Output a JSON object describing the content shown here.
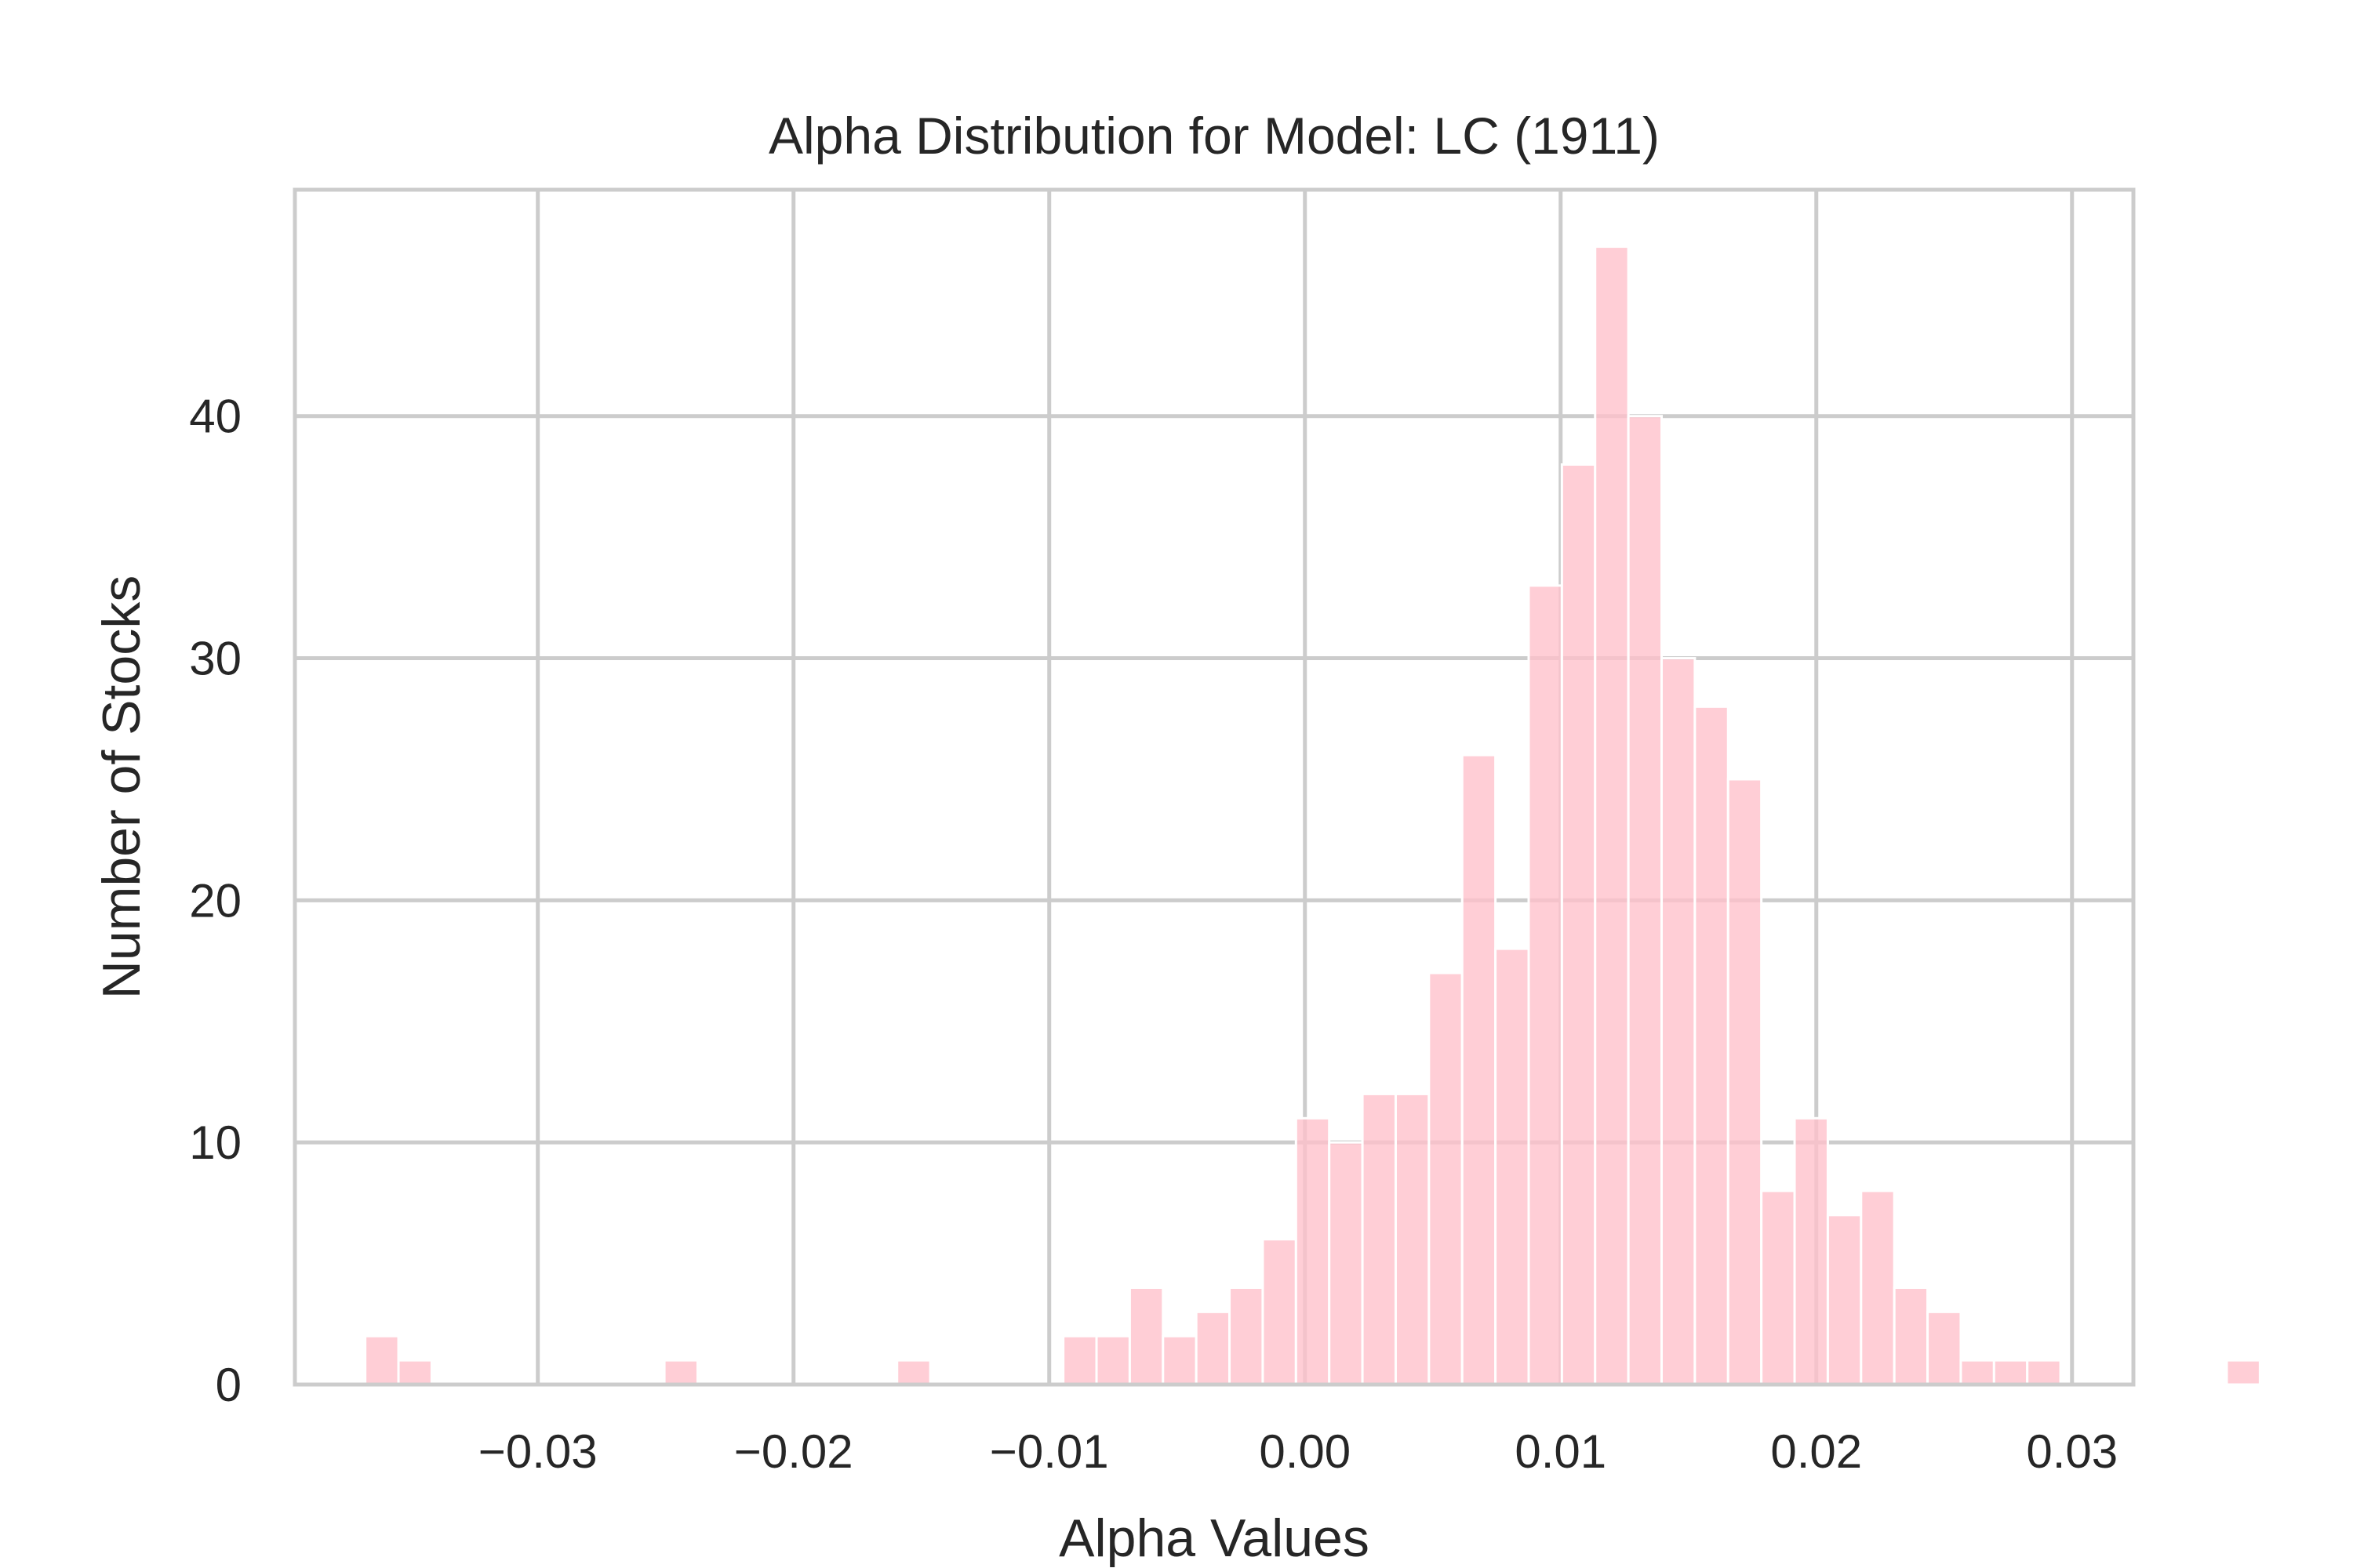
{
  "chart_data": {
    "type": "bar",
    "title": "Alpha Distribution for Model: LC (1911)",
    "xlabel": "Alpha Values",
    "ylabel": "Number of Stocks",
    "xlim": [
      -0.0395,
      0.0324
    ],
    "ylim": [
      0,
      49.35
    ],
    "grid": true,
    "bar_color": "#ffc0cb",
    "bin_start": -0.03675,
    "bin_width": 0.0013,
    "counts": [
      2,
      1,
      0,
      0,
      0,
      0,
      0,
      0,
      0,
      1,
      0,
      0,
      0,
      0,
      0,
      0,
      1,
      0,
      0,
      0,
      0,
      2,
      2,
      4,
      2,
      3,
      4,
      6,
      11,
      10,
      12,
      12,
      17,
      26,
      18,
      33,
      38,
      47,
      40,
      30,
      28,
      25,
      8,
      11,
      7,
      8,
      4,
      3,
      1,
      1,
      1,
      0,
      0,
      0,
      0,
      0,
      1
    ],
    "xticks": [
      -0.03,
      -0.02,
      -0.01,
      0.0,
      0.01,
      0.02,
      0.03
    ],
    "xtick_labels": [
      "−0.03",
      "−0.02",
      "−0.01",
      "0.00",
      "0.01",
      "0.02",
      "0.03"
    ],
    "yticks": [
      0,
      10,
      20,
      30,
      40
    ],
    "ytick_labels": [
      "0",
      "10",
      "20",
      "30",
      "40"
    ]
  }
}
